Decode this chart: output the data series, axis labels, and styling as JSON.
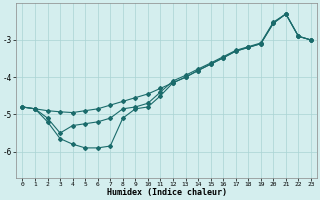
{
  "xlabel": "Humidex (Indice chaleur)",
  "bg_color": "#d4eeee",
  "grid_color": "#aad4d4",
  "line_color": "#1a6b6b",
  "xlim": [
    -0.5,
    23.5
  ],
  "ylim": [
    -6.7,
    -2.0
  ],
  "yticks": [
    -6,
    -5,
    -4,
    -3
  ],
  "xticks": [
    0,
    1,
    2,
    3,
    4,
    5,
    6,
    7,
    8,
    9,
    10,
    11,
    12,
    13,
    14,
    15,
    16,
    17,
    18,
    19,
    20,
    21,
    22,
    23
  ],
  "upper_x": [
    0,
    1,
    2,
    3,
    4,
    5,
    6,
    7,
    8,
    9,
    10,
    11,
    12,
    13,
    14,
    15,
    16,
    17,
    18,
    19,
    20,
    21,
    22,
    23
  ],
  "upper_y": [
    -4.8,
    -4.85,
    -4.9,
    -4.93,
    -4.95,
    -4.9,
    -4.85,
    -4.75,
    -4.65,
    -4.55,
    -4.45,
    -4.3,
    -4.15,
    -4.0,
    -3.82,
    -3.65,
    -3.48,
    -3.3,
    -3.2,
    -3.1,
    -2.55,
    -2.3,
    -2.9,
    -3.0
  ],
  "lower_x": [
    0,
    1,
    2,
    3,
    4,
    5,
    6,
    7,
    8,
    9,
    10,
    11,
    12,
    13,
    14,
    15,
    16,
    17,
    18,
    19,
    20,
    21,
    22,
    23
  ],
  "lower_y": [
    -4.8,
    -4.85,
    -5.2,
    -5.65,
    -5.8,
    -5.9,
    -5.9,
    -5.85,
    -5.1,
    -4.85,
    -4.8,
    -4.5,
    -4.15,
    -4.0,
    -3.82,
    -3.65,
    -3.48,
    -3.3,
    -3.2,
    -3.1,
    -2.55,
    -2.3,
    -2.9,
    -3.0
  ],
  "mid_x": [
    0,
    1,
    2,
    3,
    4,
    5,
    6,
    7,
    8,
    9,
    10,
    11,
    12,
    13,
    14,
    15,
    16,
    17,
    18,
    19,
    20,
    21,
    22,
    23
  ],
  "mid_y": [
    -4.8,
    -4.85,
    -5.1,
    -5.5,
    -5.3,
    -5.25,
    -5.2,
    -5.1,
    -4.85,
    -4.8,
    -4.7,
    -4.4,
    -4.1,
    -3.95,
    -3.78,
    -3.62,
    -3.45,
    -3.28,
    -3.18,
    -3.08,
    -2.52,
    -2.3,
    -2.9,
    -3.0
  ]
}
